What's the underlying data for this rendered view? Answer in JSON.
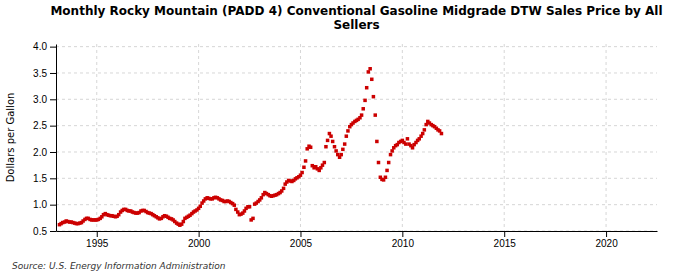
{
  "chart_data": {
    "type": "scatter",
    "title": "Monthly Rocky Mountain (PADD 4) Conventional Gasoline Midgrade DTW Sales Price by All\nSellers",
    "ylabel": "Dollars per Gallon",
    "annotations": [
      "Source: U.S. Energy Information Administration"
    ],
    "color": "#cc0000",
    "marker": "square",
    "grid": true,
    "xlim": [
      1993.0,
      2022.5
    ],
    "ylim": [
      0.5,
      4.05
    ],
    "xticks": [
      1995,
      2000,
      2005,
      2010,
      2015,
      2020
    ],
    "yticks": [
      0.5,
      {
        "value": 1.0,
        "label": "1.0"
      },
      1.5,
      {
        "value": 2.0,
        "label": "2.0"
      },
      2.5,
      {
        "value": 3.0,
        "label": "3.0"
      },
      3.5,
      {
        "value": 4.0,
        "label": "4.0"
      }
    ],
    "x": [
      1993.17,
      1993.25,
      1993.33,
      1993.42,
      1993.5,
      1993.58,
      1993.67,
      1993.75,
      1993.83,
      1993.92,
      1994.0,
      1994.08,
      1994.17,
      1994.25,
      1994.33,
      1994.42,
      1994.5,
      1994.58,
      1994.67,
      1994.75,
      1994.83,
      1994.92,
      1995.0,
      1995.08,
      1995.17,
      1995.25,
      1995.33,
      1995.42,
      1995.5,
      1995.58,
      1995.67,
      1995.75,
      1995.83,
      1995.92,
      1996.0,
      1996.08,
      1996.17,
      1996.25,
      1996.33,
      1996.42,
      1996.5,
      1996.58,
      1996.67,
      1996.75,
      1996.83,
      1996.92,
      1997.0,
      1997.08,
      1997.17,
      1997.25,
      1997.33,
      1997.42,
      1997.5,
      1997.58,
      1997.67,
      1997.75,
      1997.83,
      1997.92,
      1998.0,
      1998.08,
      1998.17,
      1998.25,
      1998.33,
      1998.42,
      1998.5,
      1998.58,
      1998.67,
      1998.75,
      1998.83,
      1998.92,
      1999.0,
      1999.08,
      1999.17,
      1999.25,
      1999.33,
      1999.42,
      1999.5,
      1999.58,
      1999.67,
      1999.75,
      1999.83,
      1999.92,
      2000.0,
      2000.08,
      2000.17,
      2000.25,
      2000.33,
      2000.42,
      2000.5,
      2000.58,
      2000.67,
      2000.75,
      2000.83,
      2000.92,
      2001.0,
      2001.08,
      2001.17,
      2001.25,
      2001.33,
      2001.42,
      2001.5,
      2001.58,
      2001.67,
      2001.75,
      2001.83,
      2001.92,
      2002.0,
      2002.08,
      2002.17,
      2002.25,
      2002.33,
      2002.42,
      2002.5,
      2002.58,
      2002.67,
      2002.75,
      2002.83,
      2002.92,
      2003.0,
      2003.08,
      2003.17,
      2003.25,
      2003.33,
      2003.42,
      2003.5,
      2003.58,
      2003.67,
      2003.75,
      2003.83,
      2003.92,
      2004.0,
      2004.08,
      2004.17,
      2004.25,
      2004.33,
      2004.42,
      2004.5,
      2004.58,
      2004.67,
      2004.75,
      2004.83,
      2004.92,
      2005.0,
      2005.08,
      2005.17,
      2005.25,
      2005.33,
      2005.42,
      2005.5,
      2005.58,
      2005.67,
      2005.75,
      2005.83,
      2005.92,
      2006.0,
      2006.08,
      2006.17,
      2006.25,
      2006.33,
      2006.42,
      2006.5,
      2006.58,
      2006.67,
      2006.75,
      2006.83,
      2006.92,
      2007.0,
      2007.08,
      2007.17,
      2007.25,
      2007.33,
      2007.42,
      2007.5,
      2007.58,
      2007.67,
      2007.75,
      2007.83,
      2007.92,
      2008.0,
      2008.08,
      2008.17,
      2008.25,
      2008.33,
      2008.42,
      2008.5,
      2008.58,
      2008.67,
      2008.75,
      2008.83,
      2008.92,
      2009.0,
      2009.08,
      2009.17,
      2009.25,
      2009.33,
      2009.42,
      2009.5,
      2009.58,
      2009.67,
      2009.75,
      2009.83,
      2009.92,
      2010.0,
      2010.08,
      2010.17,
      2010.25,
      2010.33,
      2010.42,
      2010.5,
      2010.58,
      2010.67,
      2010.75,
      2010.83,
      2010.92,
      2011.0,
      2011.08,
      2011.17,
      2011.25,
      2011.33,
      2011.42,
      2011.5,
      2011.58,
      2011.67,
      2011.75,
      2011.83,
      2011.92
    ],
    "values": [
      0.62,
      0.64,
      0.66,
      0.67,
      0.69,
      0.68,
      0.67,
      0.67,
      0.66,
      0.65,
      0.64,
      0.64,
      0.65,
      0.66,
      0.69,
      0.72,
      0.74,
      0.74,
      0.72,
      0.71,
      0.71,
      0.71,
      0.71,
      0.72,
      0.74,
      0.77,
      0.81,
      0.83,
      0.81,
      0.8,
      0.79,
      0.79,
      0.78,
      0.77,
      0.78,
      0.81,
      0.86,
      0.89,
      0.91,
      0.91,
      0.89,
      0.88,
      0.88,
      0.86,
      0.85,
      0.84,
      0.84,
      0.85,
      0.88,
      0.89,
      0.89,
      0.87,
      0.85,
      0.84,
      0.83,
      0.81,
      0.79,
      0.77,
      0.75,
      0.73,
      0.74,
      0.77,
      0.79,
      0.78,
      0.76,
      0.74,
      0.73,
      0.71,
      0.68,
      0.65,
      0.63,
      0.61,
      0.63,
      0.68,
      0.74,
      0.76,
      0.78,
      0.8,
      0.83,
      0.86,
      0.88,
      0.9,
      0.93,
      0.97,
      1.03,
      1.07,
      1.11,
      1.13,
      1.12,
      1.11,
      1.11,
      1.13,
      1.14,
      1.13,
      1.11,
      1.09,
      1.08,
      1.06,
      1.06,
      1.07,
      1.06,
      1.04,
      1.02,
      0.99,
      0.91,
      0.86,
      0.81,
      0.82,
      0.84,
      0.88,
      0.93,
      0.96,
      0.96,
      0.71,
      0.74,
      1.01,
      1.03,
      1.06,
      1.09,
      1.13,
      1.19,
      1.23,
      1.21,
      1.19,
      1.17,
      1.16,
      1.17,
      1.18,
      1.19,
      1.21,
      1.23,
      1.26,
      1.31,
      1.39,
      1.43,
      1.46,
      1.45,
      1.44,
      1.46,
      1.49,
      1.51,
      1.53,
      1.56,
      1.61,
      1.71,
      1.83,
      2.06,
      2.11,
      2.09,
      1.74,
      1.7,
      1.72,
      1.68,
      1.65,
      1.7,
      1.75,
      1.8,
      2.1,
      2.22,
      2.35,
      2.3,
      2.2,
      2.1,
      2.02,
      1.95,
      1.9,
      1.95,
      2.05,
      2.15,
      2.3,
      2.4,
      2.48,
      2.52,
      2.55,
      2.58,
      2.6,
      2.62,
      2.65,
      2.7,
      2.82,
      2.98,
      3.22,
      3.52,
      3.58,
      3.38,
      3.05,
      2.7,
      2.2,
      1.8,
      1.52,
      1.48,
      1.47,
      1.52,
      1.65,
      1.8,
      1.95,
      2.02,
      2.08,
      2.12,
      2.14,
      2.18,
      2.2,
      2.22,
      2.18,
      2.15,
      2.25,
      2.15,
      2.12,
      2.08,
      2.14,
      2.18,
      2.22,
      2.25,
      2.3,
      2.35,
      2.42,
      2.52,
      2.58,
      2.55,
      2.52,
      2.5,
      2.48,
      2.45,
      2.42,
      2.4,
      2.35
    ]
  }
}
